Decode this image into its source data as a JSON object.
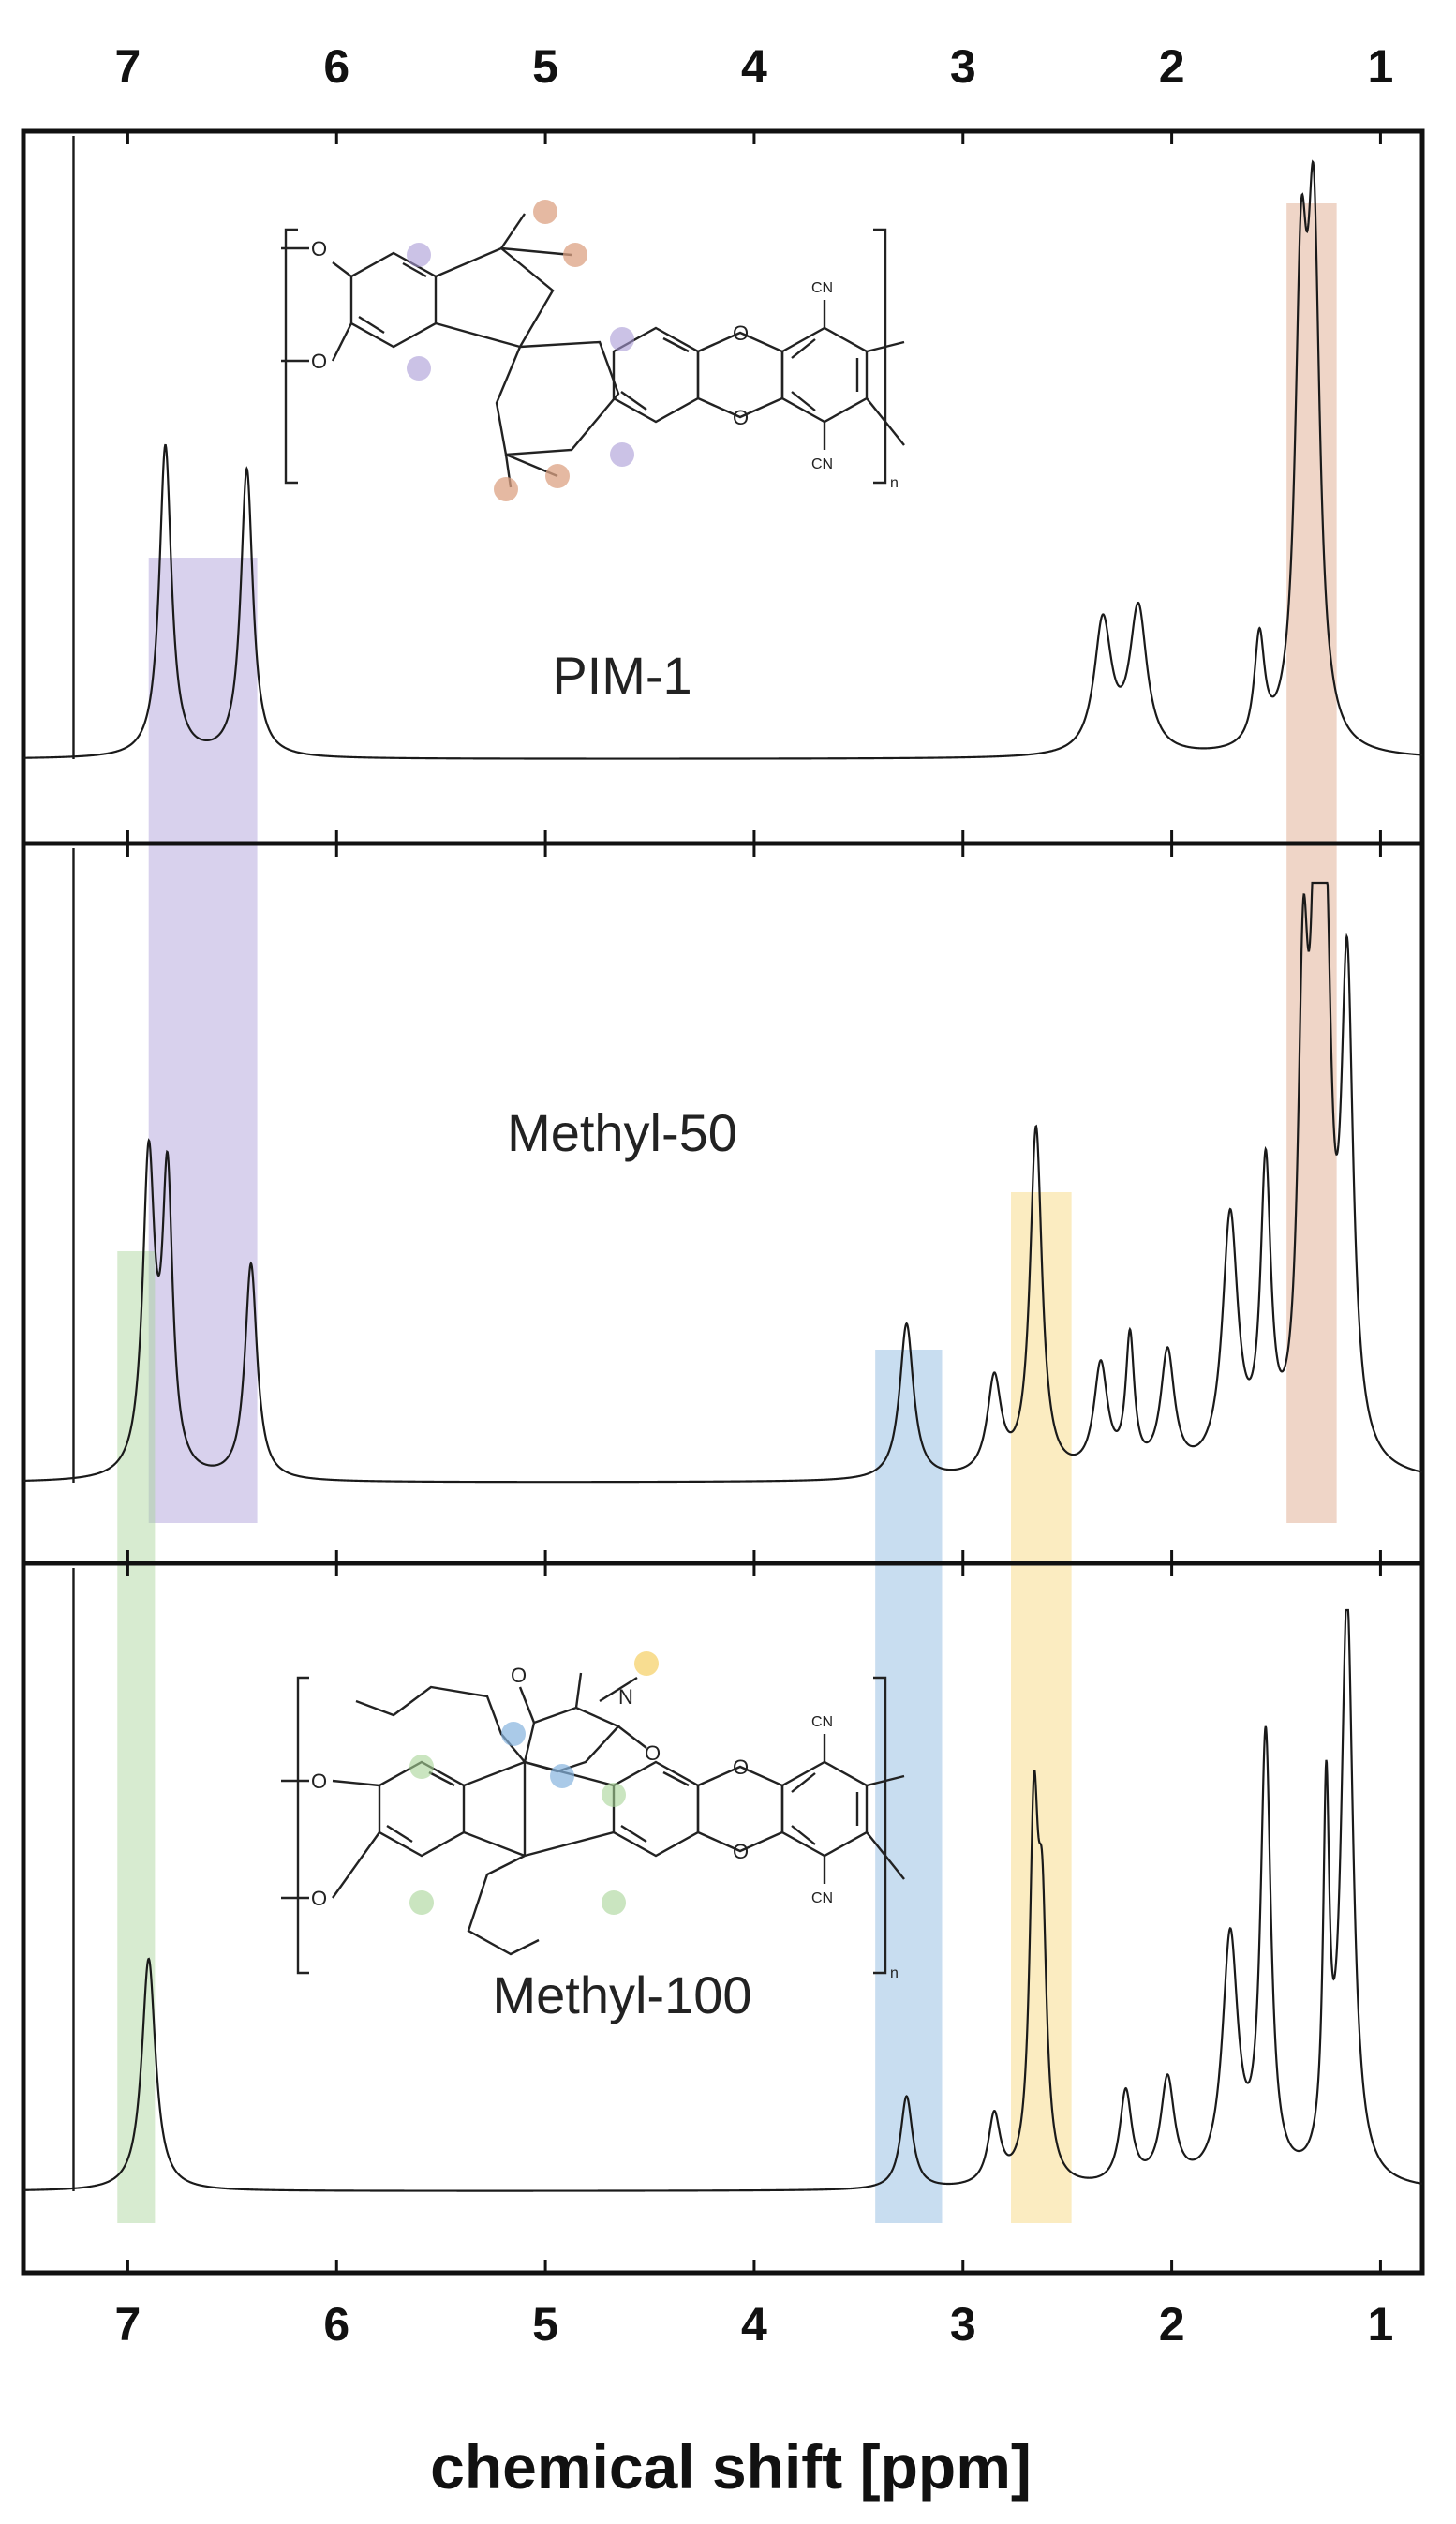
{
  "chart_data": {
    "type": "line",
    "title": "",
    "xlabel": "chemical shift [ppm]",
    "ylabel": "",
    "xlim": [
      7.5,
      0.8
    ],
    "x_reversed": true,
    "xticks": [
      7,
      6,
      5,
      4,
      3,
      2,
      1
    ],
    "xtick_labels": [
      "7",
      "6",
      "5",
      "4",
      "3",
      "2",
      "1"
    ],
    "ticks_on_top_and_bottom": true,
    "grid": false,
    "legend": "none",
    "panels": [
      {
        "name": "PIM-1",
        "solvent_peak_ppm": 7.26,
        "peaks": [
          {
            "ppm": 6.82,
            "height": 0.52,
            "width": 0.035
          },
          {
            "ppm": 6.43,
            "height": 0.48,
            "width": 0.035
          },
          {
            "ppm": 2.33,
            "height": 0.22,
            "width": 0.05
          },
          {
            "ppm": 2.16,
            "height": 0.24,
            "width": 0.05
          },
          {
            "ppm": 1.58,
            "height": 0.18,
            "width": 0.03
          },
          {
            "ppm": 1.38,
            "height": 0.72,
            "width": 0.035
          },
          {
            "ppm": 1.32,
            "height": 0.8,
            "width": 0.035
          }
        ]
      },
      {
        "name": "Methyl-50",
        "solvent_peak_ppm": 7.26,
        "peaks": [
          {
            "ppm": 6.9,
            "height": 0.52,
            "width": 0.035
          },
          {
            "ppm": 6.81,
            "height": 0.48,
            "width": 0.03
          },
          {
            "ppm": 6.41,
            "height": 0.36,
            "width": 0.035
          },
          {
            "ppm": 3.27,
            "height": 0.26,
            "width": 0.04
          },
          {
            "ppm": 2.85,
            "height": 0.16,
            "width": 0.04
          },
          {
            "ppm": 2.65,
            "height": 0.58,
            "width": 0.035
          },
          {
            "ppm": 2.34,
            "height": 0.18,
            "width": 0.04
          },
          {
            "ppm": 2.2,
            "height": 0.22,
            "width": 0.025
          },
          {
            "ppm": 2.02,
            "height": 0.2,
            "width": 0.04
          },
          {
            "ppm": 1.72,
            "height": 0.42,
            "width": 0.045
          },
          {
            "ppm": 1.55,
            "height": 0.48,
            "width": 0.03
          },
          {
            "ppm": 1.37,
            "height": 0.72,
            "width": 0.03
          },
          {
            "ppm": 1.31,
            "height": 0.8,
            "width": 0.03
          },
          {
            "ppm": 1.26,
            "height": 0.7,
            "width": 0.03
          },
          {
            "ppm": 1.16,
            "height": 0.8,
            "width": 0.035
          }
        ]
      },
      {
        "name": "Methyl-100",
        "solvent_peak_ppm": 7.26,
        "peaks": [
          {
            "ppm": 6.9,
            "height": 0.4,
            "width": 0.04
          },
          {
            "ppm": 3.27,
            "height": 0.16,
            "width": 0.035
          },
          {
            "ppm": 2.85,
            "height": 0.12,
            "width": 0.035
          },
          {
            "ppm": 2.66,
            "height": 0.6,
            "width": 0.025
          },
          {
            "ppm": 2.62,
            "height": 0.4,
            "width": 0.025
          },
          {
            "ppm": 2.22,
            "height": 0.16,
            "width": 0.035
          },
          {
            "ppm": 2.02,
            "height": 0.18,
            "width": 0.04
          },
          {
            "ppm": 1.72,
            "height": 0.42,
            "width": 0.045
          },
          {
            "ppm": 1.55,
            "height": 0.76,
            "width": 0.03
          },
          {
            "ppm": 1.26,
            "height": 0.62,
            "width": 0.018
          },
          {
            "ppm": 1.16,
            "height": 1.0,
            "width": 0.035
          }
        ]
      }
    ],
    "highlight_bands": [
      {
        "color": "purple",
        "hex": "#a99ad6",
        "ppm_range": [
          6.9,
          6.38
        ],
        "panels": [
          "PIM-1",
          "Methyl-50"
        ]
      },
      {
        "color": "green",
        "hex": "#a7d396",
        "ppm_range": [
          7.05,
          6.87
        ],
        "panels": [
          "Methyl-50",
          "Methyl-100"
        ]
      },
      {
        "color": "blue",
        "hex": "#86b3de",
        "ppm_range": [
          3.42,
          3.1
        ],
        "panels": [
          "Methyl-50",
          "Methyl-100"
        ]
      },
      {
        "color": "yellow",
        "hex": "#f6d575",
        "ppm_range": [
          2.77,
          2.48
        ],
        "panels": [
          "Methyl-50",
          "Methyl-100"
        ]
      },
      {
        "color": "orange",
        "hex": "#dca283",
        "ppm_range": [
          1.45,
          1.21
        ],
        "panels": [
          "PIM-1",
          "Methyl-50"
        ]
      }
    ]
  },
  "structures": {
    "pim1": {
      "o_label": "O",
      "cn_label": "CN",
      "n_label": "n"
    },
    "methyl100": {
      "o_label": "O",
      "n_atom_label": "N",
      "cn_label": "CN",
      "n_label": "n"
    }
  },
  "colors": {
    "spectrum": "#1a1a1a",
    "frame": "#111111",
    "purple": "#a99ad6",
    "green": "#a7d396",
    "blue": "#86b3de",
    "yellow": "#f6d575",
    "orange": "#dca283"
  }
}
